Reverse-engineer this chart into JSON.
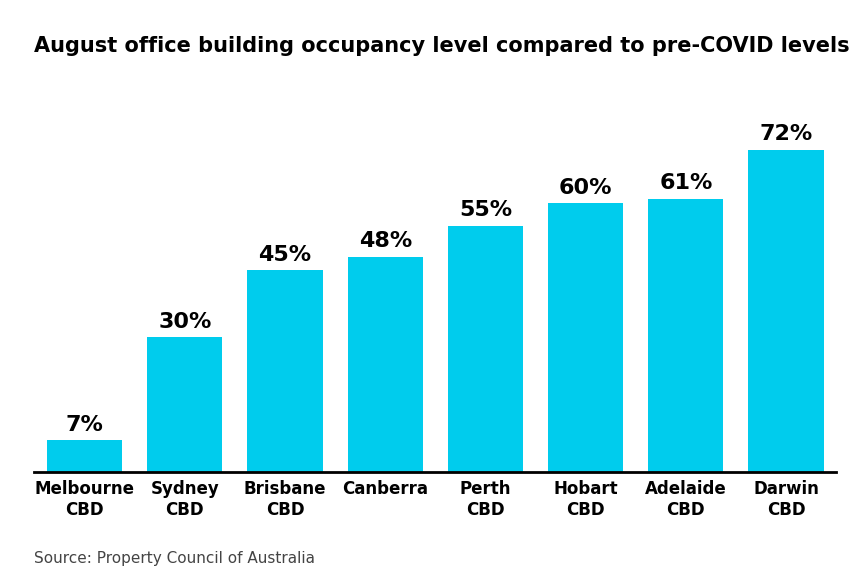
{
  "title": "August office building occupancy level compared to pre-COVID levels",
  "categories": [
    "Melbourne\nCBD",
    "Sydney\nCBD",
    "Brisbane\nCBD",
    "Canberra",
    "Perth\nCBD",
    "Hobart\nCBD",
    "Adelaide\nCBD",
    "Darwin\nCBD"
  ],
  "values": [
    7,
    30,
    45,
    48,
    55,
    60,
    61,
    72
  ],
  "bar_color": "#00CCED",
  "label_color": "#000000",
  "background_color": "#ffffff",
  "source_text": "Source: Property Council of Australia",
  "title_fontsize": 15,
  "label_fontsize": 16,
  "tick_fontsize": 12,
  "source_fontsize": 11,
  "ylim": [
    0,
    90
  ],
  "bar_width": 0.75
}
